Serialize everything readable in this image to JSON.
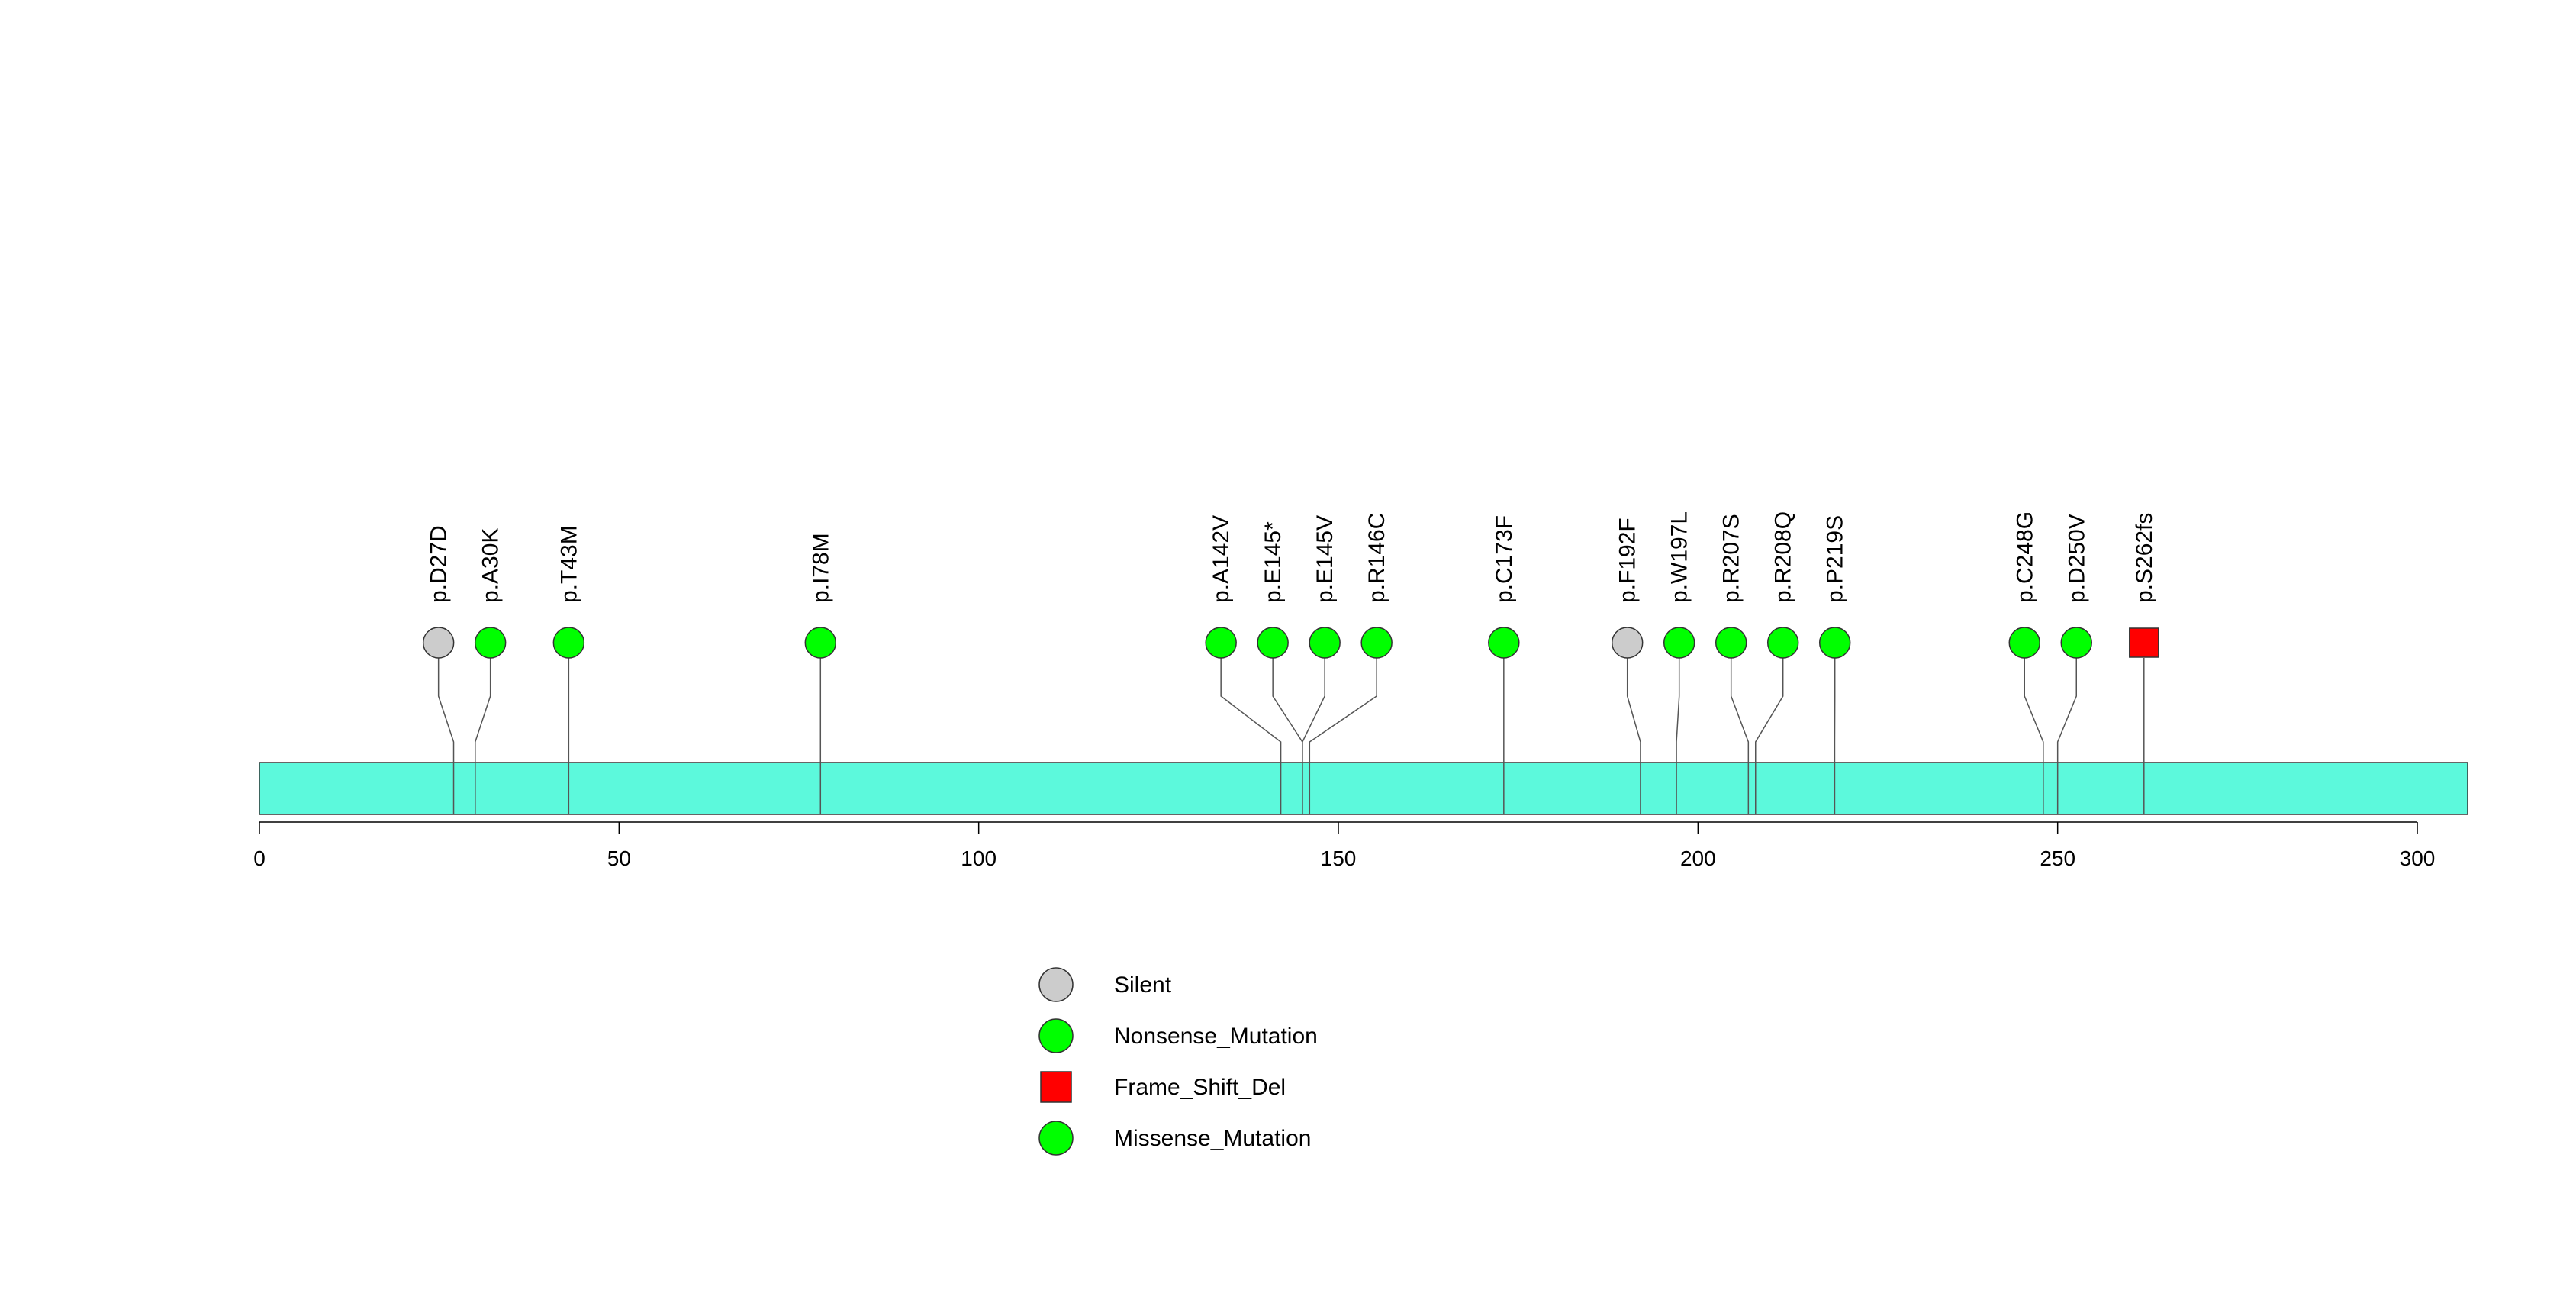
{
  "chart_data": {
    "type": "lollipop",
    "title": "",
    "xlabel": "",
    "ylabel": "",
    "xlim": [
      0,
      307
    ],
    "ticks": [
      0,
      50,
      100,
      150,
      200,
      250,
      300
    ],
    "tick_labels": [
      "0",
      "50",
      "100",
      "150",
      "200",
      "250",
      "300"
    ],
    "domain_color": "#5CF9DC",
    "mutations": [
      {
        "label": "p.D27D",
        "position": 27,
        "type": "Silent"
      },
      {
        "label": "p.A30K",
        "position": 30,
        "type": "Nonsense_Mutation"
      },
      {
        "label": "p.T43M",
        "position": 43,
        "type": "Missense_Mutation"
      },
      {
        "label": "p.I78M",
        "position": 78,
        "type": "Missense_Mutation"
      },
      {
        "label": "p.A142V",
        "position": 142,
        "type": "Missense_Mutation"
      },
      {
        "label": "p.E145*",
        "position": 145,
        "type": "Nonsense_Mutation"
      },
      {
        "label": "p.E145V",
        "position": 145,
        "type": "Missense_Mutation"
      },
      {
        "label": "p.R146C",
        "position": 146,
        "type": "Missense_Mutation"
      },
      {
        "label": "p.C173F",
        "position": 173,
        "type": "Missense_Mutation"
      },
      {
        "label": "p.F192F",
        "position": 192,
        "type": "Silent"
      },
      {
        "label": "p.W197L",
        "position": 197,
        "type": "Missense_Mutation"
      },
      {
        "label": "p.R207S",
        "position": 207,
        "type": "Missense_Mutation"
      },
      {
        "label": "p.R208Q",
        "position": 208,
        "type": "Missense_Mutation"
      },
      {
        "label": "p.P219S",
        "position": 219,
        "type": "Missense_Mutation"
      },
      {
        "label": "p.C248G",
        "position": 248,
        "type": "Missense_Mutation"
      },
      {
        "label": "p.D250V",
        "position": 250,
        "type": "Missense_Mutation"
      },
      {
        "label": "p.S262fs",
        "position": 262,
        "type": "Frame_Shift_Del"
      }
    ],
    "legend": [
      {
        "label": "Silent",
        "shape": "circle",
        "color": "#CCCCCC"
      },
      {
        "label": "Nonsense_Mutation",
        "shape": "circle",
        "color": "#00FF00"
      },
      {
        "label": "Frame_Shift_Del",
        "shape": "square",
        "color": "#FF0000"
      },
      {
        "label": "Missense_Mutation",
        "shape": "circle",
        "color": "#00FF00"
      }
    ],
    "type_colors": {
      "Silent": "#CCCCCC",
      "Nonsense_Mutation": "#00FF00",
      "Missense_Mutation": "#00FF00",
      "Frame_Shift_Del": "#FF0000"
    }
  }
}
